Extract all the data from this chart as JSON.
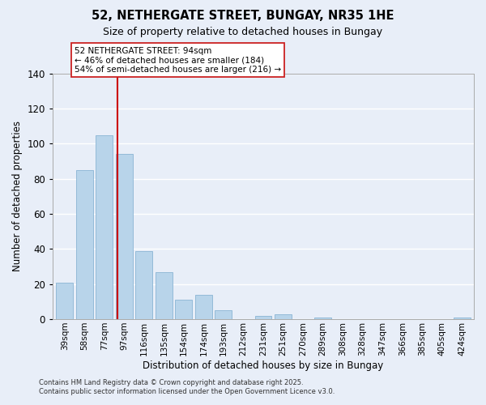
{
  "title": "52, NETHERGATE STREET, BUNGAY, NR35 1HE",
  "subtitle": "Size of property relative to detached houses in Bungay",
  "xlabel": "Distribution of detached houses by size in Bungay",
  "ylabel": "Number of detached properties",
  "bar_labels": [
    "39sqm",
    "58sqm",
    "77sqm",
    "97sqm",
    "116sqm",
    "135sqm",
    "154sqm",
    "174sqm",
    "193sqm",
    "212sqm",
    "231sqm",
    "251sqm",
    "270sqm",
    "289sqm",
    "308sqm",
    "328sqm",
    "347sqm",
    "366sqm",
    "385sqm",
    "405sqm",
    "424sqm"
  ],
  "bar_values": [
    21,
    85,
    105,
    94,
    39,
    27,
    11,
    14,
    5,
    0,
    2,
    3,
    0,
    1,
    0,
    0,
    0,
    0,
    0,
    0,
    1
  ],
  "bar_color": "#b8d4ea",
  "bar_edge_color": "#8ab4d4",
  "ylim": [
    0,
    140
  ],
  "yticks": [
    0,
    20,
    40,
    60,
    80,
    100,
    120,
    140
  ],
  "vline_x_index": 3,
  "vline_color": "#cc0000",
  "annotation_title": "52 NETHERGATE STREET: 94sqm",
  "annotation_line1": "← 46% of detached houses are smaller (184)",
  "annotation_line2": "54% of semi-detached houses are larger (216) →",
  "footer1": "Contains HM Land Registry data © Crown copyright and database right 2025.",
  "footer2": "Contains public sector information licensed under the Open Government Licence v3.0.",
  "background_color": "#e8eef8",
  "plot_bg_color": "#e8eef8",
  "grid_color": "#ffffff"
}
